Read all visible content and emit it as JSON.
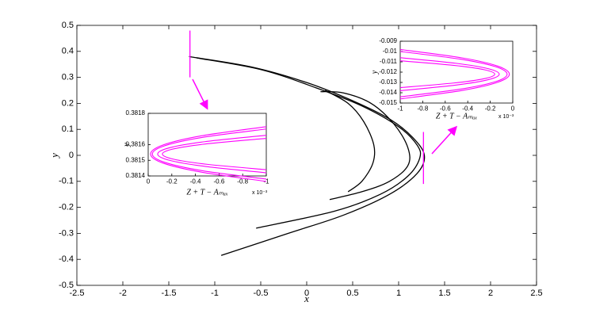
{
  "chart_data": [
    {
      "type": "line",
      "xlabel": "x",
      "ylabel": "y",
      "xlim": [
        -2.5,
        2.5
      ],
      "ylim": [
        -0.5,
        0.5
      ],
      "xticks": [
        -2.5,
        -2,
        -1.5,
        -1,
        -0.5,
        0,
        0.5,
        1,
        1.5,
        2,
        2.5
      ],
      "yticks": [
        -0.5,
        -0.4,
        -0.3,
        -0.2,
        -0.1,
        0,
        0.1,
        0.2,
        0.3,
        0.4,
        0.5
      ],
      "series": [
        {
          "color": "#000000",
          "x": [
            -1.28,
            -0.6,
            0,
            0.5,
            0.9,
            1.15,
            1.28,
            1.2,
            0.9,
            0.4,
            -0.2,
            -0.93
          ],
          "values": [
            0.38,
            0.34,
            0.28,
            0.21,
            0.14,
            0.07,
            0,
            -0.07,
            -0.15,
            -0.23,
            -0.3,
            -0.385
          ]
        },
        {
          "color": "#000000",
          "x": [
            -1.2,
            -0.5,
            0.1,
            0.6,
            1.0,
            1.2,
            1.23,
            1.1,
            0.8,
            0.3,
            -0.55
          ],
          "values": [
            0.375,
            0.33,
            0.26,
            0.19,
            0.11,
            0.04,
            -0.01,
            -0.08,
            -0.15,
            -0.215,
            -0.28
          ]
        },
        {
          "color": "#000000",
          "x": [
            0.15,
            0.4,
            0.7,
            0.95,
            1.1,
            1.1,
            0.9,
            0.6,
            0.25
          ],
          "values": [
            0.245,
            0.24,
            0.2,
            0.12,
            0.03,
            -0.04,
            -0.1,
            -0.14,
            -0.17
          ]
        },
        {
          "color": "#000000",
          "x": [
            0.2,
            0.45,
            0.62,
            0.73,
            0.72,
            0.6,
            0.45
          ],
          "values": [
            0.25,
            0.2,
            0.13,
            0.04,
            -0.03,
            -0.1,
            -0.14
          ]
        },
        {
          "color": "#ff00ff",
          "x": [
            -1.27,
            -1.27
          ],
          "values": [
            0.48,
            0.3
          ]
        },
        {
          "color": "#ff00ff",
          "x": [
            1.27,
            1.27
          ],
          "values": [
            0.09,
            -0.11
          ]
        }
      ]
    },
    {
      "type": "line",
      "xlabel": "Z + T − Aₘₐₓ",
      "ylabel": "y",
      "multiplier": "x 10⁻³",
      "xlim": [
        0,
        -1
      ],
      "ylim": [
        0.3814,
        0.3818
      ],
      "xticks": [
        0,
        -0.2,
        -0.4,
        -0.6,
        -0.8,
        -1
      ],
      "yticks": [
        0.3814,
        0.3815,
        0.3816,
        0.3818
      ],
      "series": [
        {
          "color": "#ff00ff",
          "x": [
            -1,
            -0.4469,
            -0.1267,
            -0.02,
            -0.1267,
            -0.4469,
            -1
          ],
          "values": [
            0.381715,
            0.381656,
            0.381598,
            0.38154,
            0.381482,
            0.381425,
            0.381365
          ]
        },
        {
          "color": "#ff00ff",
          "x": [
            -1,
            -0.4554,
            -0.1401,
            -0.035,
            -0.1401,
            -0.4554,
            -1
          ],
          "values": [
            0.3817,
            0.381646,
            0.381593,
            0.38154,
            0.381487,
            0.381434,
            0.38138
          ]
        },
        {
          "color": "#ff00ff",
          "x": [
            -1,
            -0.4808,
            -0.1802,
            -0.08,
            -0.1802,
            -0.4808,
            -1
          ],
          "values": [
            0.38166,
            0.381619,
            0.38158,
            0.38154,
            0.3815,
            0.381461,
            0.38142
          ]
        },
        {
          "color": "#ff00ff",
          "x": [
            -1,
            -0.5033,
            -0.2158,
            -0.12,
            -0.2158,
            -0.5033,
            -1
          ],
          "values": [
            0.38164,
            0.381606,
            0.381573,
            0.38154,
            0.381507,
            0.381474,
            0.38144
          ]
        }
      ]
    },
    {
      "type": "line",
      "xlabel": "Z + T − Aₘₐₓ",
      "ylabel": "y",
      "multiplier": "x 10⁻³",
      "xlim": [
        -1,
        0
      ],
      "ylim": [
        -0.015,
        -0.009
      ],
      "xticks": [
        -1,
        -0.8,
        -0.6,
        -0.4,
        -0.2,
        0
      ],
      "yticks": [
        -0.015,
        -0.014,
        -0.013,
        -0.012,
        -0.011,
        -0.01,
        -0.009
      ],
      "series": [
        {
          "color": "#ff00ff",
          "x": [
            -1,
            -0.4525,
            -0.1356,
            -0.03,
            -0.1356,
            -0.4525,
            -1
          ],
          "values": [
            -0.0098,
            -0.010616,
            -0.011408,
            -0.0122,
            -0.012992,
            -0.013784,
            -0.0146
          ]
        },
        {
          "color": "#ff00ff",
          "x": [
            -1,
            -0.4638,
            -0.1535,
            -0.05,
            -0.1535,
            -0.4638,
            -1
          ],
          "values": [
            -0.01,
            -0.010748,
            -0.011474,
            -0.0122,
            -0.012926,
            -0.013652,
            -0.0144
          ]
        },
        {
          "color": "#ff00ff",
          "x": [
            -1,
            -0.5033,
            -0.2158,
            -0.12,
            -0.2158,
            -0.5033,
            -1
          ],
          "values": [
            -0.0106,
            -0.011144,
            -0.011672,
            -0.0122,
            -0.012728,
            -0.013256,
            -0.0138
          ]
        },
        {
          "color": "#ff00ff",
          "x": [
            -1,
            -0.5259,
            -0.2515,
            -0.16,
            -0.2515,
            -0.5259,
            -1
          ],
          "values": [
            -0.0109,
            -0.011342,
            -0.011771,
            -0.0122,
            -0.012629,
            -0.013058,
            -0.0135
          ]
        }
      ]
    }
  ]
}
